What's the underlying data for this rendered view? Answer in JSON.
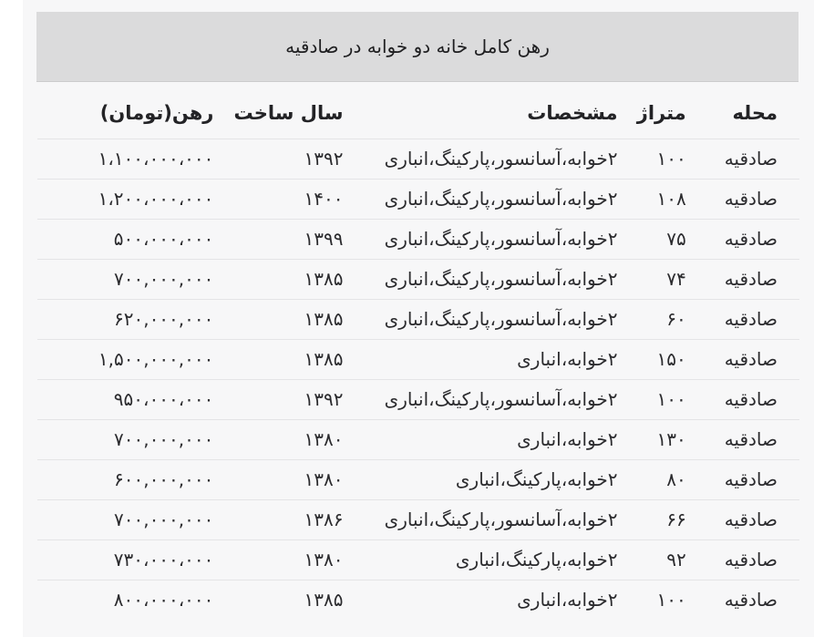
{
  "table": {
    "title": "رهن کامل خانه دو خوابه در صادقیه",
    "columns": [
      "محله",
      "متراژ",
      "مشخصات",
      "سال ساخت",
      "رهن(تومان)"
    ],
    "rows": [
      {
        "neighborhood": "صادقیه",
        "area": "۱۰۰",
        "specs": "۲خوابه،آسانسور،پارکینگ،انباری",
        "year": "۱۳۹۲",
        "deposit": "۱،۱۰۰،۰۰۰،۰۰۰"
      },
      {
        "neighborhood": "صادقیه",
        "area": "۱۰۸",
        "specs": "۲خوابه،آسانسور،پارکینگ،انباری",
        "year": "۱۴۰۰",
        "deposit": "۱،۲۰۰،۰۰۰،۰۰۰"
      },
      {
        "neighborhood": "صادقیه",
        "area": "۷۵",
        "specs": "۲خوابه،آسانسور،پارکینگ،انباری",
        "year": "۱۳۹۹",
        "deposit": "۵۰۰،۰۰۰،۰۰۰"
      },
      {
        "neighborhood": "صادقیه",
        "area": "۷۴",
        "specs": "۲خوابه،آسانسور،پارکینگ،انباری",
        "year": "۱۳۸۵",
        "deposit": "۷۰۰,۰۰۰,۰۰۰"
      },
      {
        "neighborhood": "صادقیه",
        "area": "۶۰",
        "specs": "۲خوابه،آسانسور،پارکینگ،انباری",
        "year": "۱۳۸۵",
        "deposit": "۶۲۰,۰۰۰,۰۰۰"
      },
      {
        "neighborhood": "صادقیه",
        "area": "۱۵۰",
        "specs": "۲خوابه،انباری",
        "year": "۱۳۸۵",
        "deposit": "۱,۵۰۰,۰۰۰,۰۰۰"
      },
      {
        "neighborhood": "صادقیه",
        "area": "۱۰۰",
        "specs": "۲خوابه،آسانسور،پارکینگ،انباری",
        "year": "۱۳۹۲",
        "deposit": "۹۵۰،۰۰۰،۰۰۰"
      },
      {
        "neighborhood": "صادقیه",
        "area": "۱۳۰",
        "specs": "۲خوابه،انباری",
        "year": "۱۳۸۰",
        "deposit": "۷۰۰,۰۰۰,۰۰۰"
      },
      {
        "neighborhood": "صادقیه",
        "area": "۸۰",
        "specs": "۲خوابه،پارکینگ،انباری",
        "year": "۱۳۸۰",
        "deposit": "۶۰۰,۰۰۰,۰۰۰"
      },
      {
        "neighborhood": "صادقیه",
        "area": "۶۶",
        "specs": "۲خوابه،آسانسور،پارکینگ،انباری",
        "year": "۱۳۸۶",
        "deposit": "۷۰۰,۰۰۰,۰۰۰"
      },
      {
        "neighborhood": "صادقیه",
        "area": "۹۲",
        "specs": "۲خوابه،پارکینگ،انباری",
        "year": "۱۳۸۰",
        "deposit": "۷۳۰،۰۰۰،۰۰۰"
      },
      {
        "neighborhood": "صادقیه",
        "area": "۱۰۰",
        "specs": "۲خوابه،انباری",
        "year": "۱۳۸۵",
        "deposit": "۸۰۰،۰۰۰،۰۰۰"
      }
    ]
  },
  "colors": {
    "page_bg": "#ffffff",
    "panel_bg": "#f7f7f8",
    "title_bg": "#dbdbdc",
    "row_border": "#e4e4e6",
    "text": "#2b2b2e"
  }
}
